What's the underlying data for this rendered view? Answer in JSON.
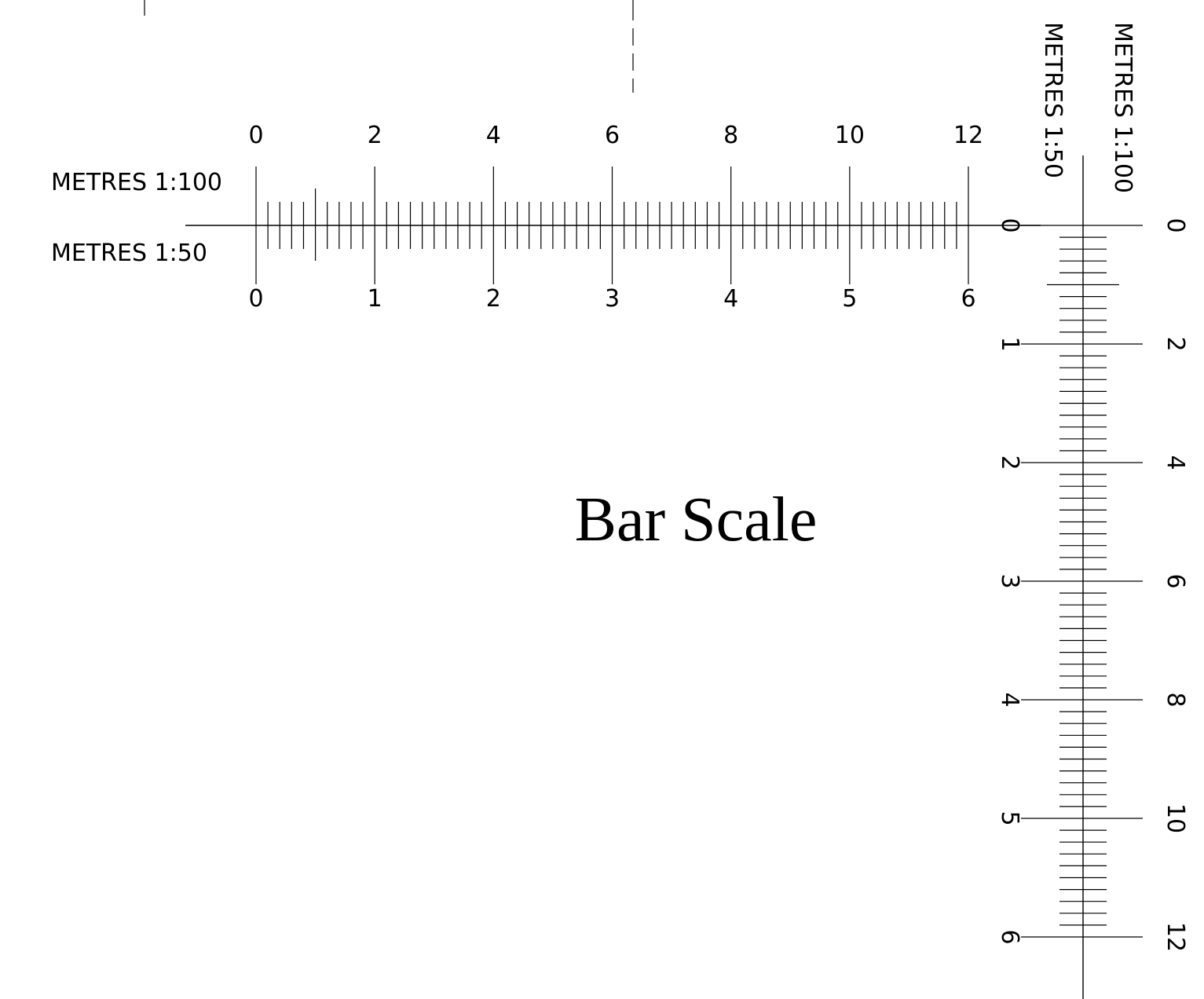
{
  "title": "Bar Scale",
  "horizontal_scale": {
    "top_label": "METRES 1:100",
    "bottom_label": "METRES 1:50",
    "top_ticks": [
      "0",
      "2",
      "4",
      "6",
      "8",
      "10",
      "12"
    ],
    "bottom_ticks": [
      "0",
      "1",
      "2",
      "3",
      "4",
      "5",
      "6"
    ]
  },
  "vertical_scale": {
    "right_label": "METRES 1:100",
    "left_label": "METRES 1:50",
    "right_ticks": [
      "0",
      "2",
      "4",
      "6",
      "8",
      "10",
      "12"
    ],
    "left_ticks": [
      "0",
      "1",
      "2",
      "3",
      "4",
      "5",
      "6"
    ]
  },
  "units": {
    "metres_1_50_max": 6,
    "metres_1_100_max": 12,
    "minor_divisions_per_metre_1_50": 10
  }
}
